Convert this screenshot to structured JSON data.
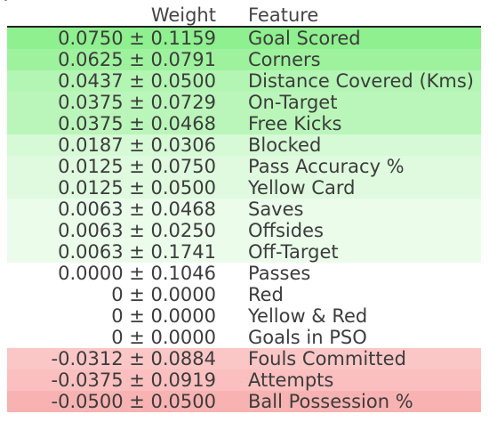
{
  "header": {
    "weight_label": "Weight",
    "feature_label": "Feature"
  },
  "rows": [
    {
      "weight": "0.0750 ± 0.1159",
      "feature": "Goal Scored",
      "color": "#8ef08e"
    },
    {
      "weight": "0.0625 ± 0.0791",
      "feature": "Corners",
      "color": "#9ef29e"
    },
    {
      "weight": "0.0437 ± 0.0500",
      "feature": "Distance Covered (Kms)",
      "color": "#b3f5b3"
    },
    {
      "weight": "0.0375 ± 0.0729",
      "feature": "On-Target",
      "color": "#baf6ba"
    },
    {
      "weight": "0.0375 ± 0.0468",
      "feature": "Free Kicks",
      "color": "#baf6ba"
    },
    {
      "weight": "0.0187 ± 0.0306",
      "feature": "Blocked",
      "color": "#d6f9d6"
    },
    {
      "weight": "0.0125 ± 0.0750",
      "feature": "Pass Accuracy %",
      "color": "#dffadf"
    },
    {
      "weight": "0.0125 ± 0.0500",
      "feature": "Yellow Card",
      "color": "#dffadf"
    },
    {
      "weight": "0.0063 ± 0.0468",
      "feature": "Saves",
      "color": "#ebfceb"
    },
    {
      "weight": "0.0063 ± 0.0250",
      "feature": "Offsides",
      "color": "#ebfceb"
    },
    {
      "weight": "0.0063 ± 0.1741",
      "feature": "Off-Target",
      "color": "#ebfceb"
    },
    {
      "weight": "0.0000 ± 0.1046",
      "feature": "Passes",
      "color": "#ffffff"
    },
    {
      "weight": "0 ± 0.0000",
      "feature": "Red",
      "color": "#ffffff"
    },
    {
      "weight": "0 ± 0.0000",
      "feature": "Yellow & Red",
      "color": "#ffffff"
    },
    {
      "weight": "0 ± 0.0000",
      "feature": "Goals in PSO",
      "color": "#ffffff"
    },
    {
      "weight": "-0.0312 ± 0.0884",
      "feature": "Fouls Committed",
      "color": "#fbc6c6"
    },
    {
      "weight": "-0.0375 ± 0.0919",
      "feature": "Attempts",
      "color": "#fbbfbf"
    },
    {
      "weight": "-0.0500 ± 0.0500",
      "feature": "Ball Possession %",
      "color": "#f9b2b2"
    }
  ]
}
